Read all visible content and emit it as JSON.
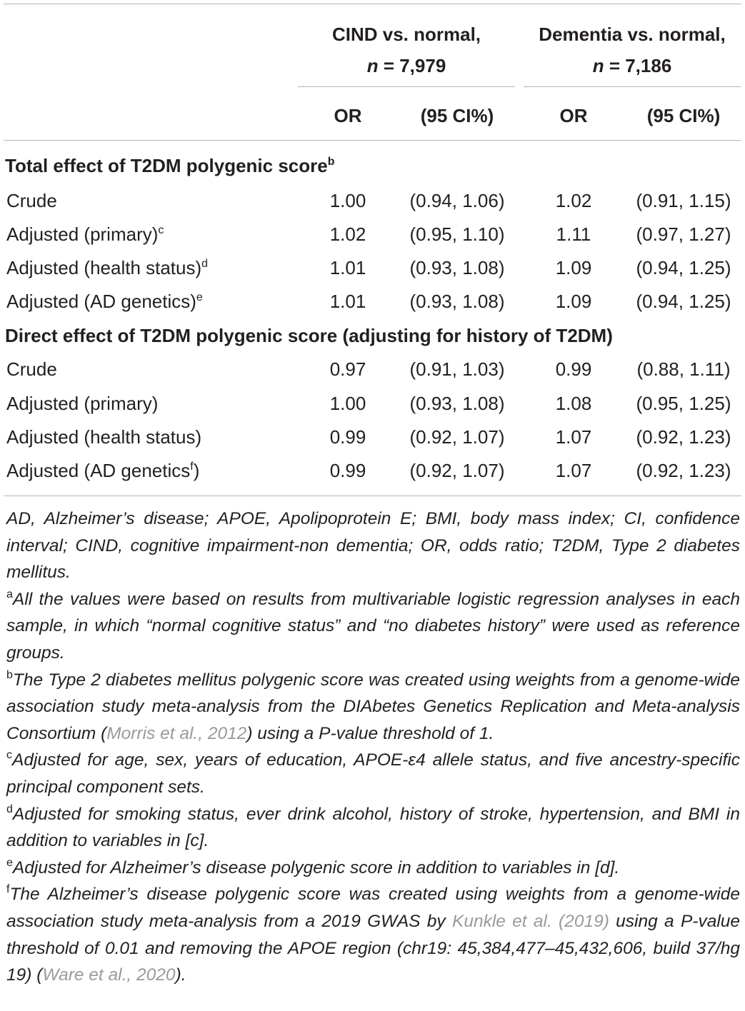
{
  "columns": {
    "cind": {
      "title": "CIND vs. normal,",
      "n_label": "n",
      "n_value": "= 7,979"
    },
    "dementia": {
      "title": "Dementia vs. normal,",
      "n_label": "n",
      "n_value": "= 7,186"
    },
    "or_label": "OR",
    "ci_label": "(95 CI%)"
  },
  "sections": [
    {
      "title": "Total effect of T2DM polygenic score",
      "title_mark": "b",
      "rows": [
        {
          "label": "Crude",
          "mark": "",
          "or1": "1.00",
          "ci1": "(0.94, 1.06)",
          "or2": "1.02",
          "ci2": "(0.91, 1.15)"
        },
        {
          "label": "Adjusted (primary)",
          "mark": "c",
          "or1": "1.02",
          "ci1": "(0.95, 1.10)",
          "or2": "1.11",
          "ci2": "(0.97, 1.27)"
        },
        {
          "label": "Adjusted (health status)",
          "mark": "d",
          "or1": "1.01",
          "ci1": "(0.93, 1.08)",
          "or2": "1.09",
          "ci2": "(0.94, 1.25)"
        },
        {
          "label": "Adjusted (AD genetics)",
          "mark": "e",
          "or1": "1.01",
          "ci1": "(0.93, 1.08)",
          "or2": "1.09",
          "ci2": "(0.94, 1.25)"
        }
      ]
    },
    {
      "title": "Direct effect of T2DM polygenic score (adjusting for history of T2DM)",
      "title_mark": "",
      "rows": [
        {
          "label": "Crude",
          "mark": "",
          "or1": "0.97",
          "ci1": "(0.91, 1.03)",
          "or2": "0.99",
          "ci2": "(0.88, 1.11)"
        },
        {
          "label": "Adjusted (primary)",
          "mark": "",
          "or1": "1.00",
          "ci1": "(0.93, 1.08)",
          "or2": "1.08",
          "ci2": "(0.95, 1.25)"
        },
        {
          "label": "Adjusted (health status)",
          "mark": "",
          "or1": "0.99",
          "ci1": "(0.92, 1.07)",
          "or2": "1.07",
          "ci2": "(0.92, 1.23)"
        },
        {
          "label": "Adjusted (AD genetics",
          "mark": "f",
          "suffix": ")",
          "or1": "0.99",
          "ci1": "(0.92, 1.07)",
          "or2": "1.07",
          "ci2": "(0.92, 1.23)"
        }
      ]
    }
  ],
  "notes": {
    "abbreviations": "AD, Alzheimer’s disease; APOE, Apolipoprotein E; BMI, body mass index; CI, confidence interval; CIND, cognitive impairment-non dementia; OR, odds ratio; T2DM, Type 2 diabetes mellitus.",
    "a": {
      "mark": "a",
      "text": "All the values were based on results from multivariable logistic regression analyses in each sample, in which “normal cognitive status” and “no diabetes history” were used as reference groups."
    },
    "b": {
      "mark": "b",
      "text_1": "The Type 2 diabetes mellitus polygenic score was created using weights from a genome-wide association study meta-analysis from the DIAbetes Genetics Replication and Meta-analysis Consortium (",
      "ref": "Morris et al., 2012",
      "text_2": ") using a P-value threshold of 1."
    },
    "c": {
      "mark": "c",
      "text": "Adjusted for age, sex, years of education, APOE-ε4 allele status, and five ancestry-specific principal component sets."
    },
    "d": {
      "mark": "d",
      "text": "Adjusted for smoking status, ever drink alcohol, history of stroke, hypertension, and BMI in addition to variables in [c]."
    },
    "e": {
      "mark": "e",
      "text": "Adjusted for Alzheimer’s disease polygenic score in addition to variables in [d]."
    },
    "f": {
      "mark": "f",
      "text_1": "The Alzheimer’s disease polygenic score was created using weights from a genome-wide association study meta-analysis from a 2019 GWAS by ",
      "ref_1": "Kunkle et al. (2019)",
      "text_2": " using a P-value threshold of 0.01 and removing the APOE region (chr19: 45,384,477–45,432,606, build 37/hg 19) (",
      "ref_2": "Ware et al., 2020",
      "text_3": ")."
    }
  }
}
